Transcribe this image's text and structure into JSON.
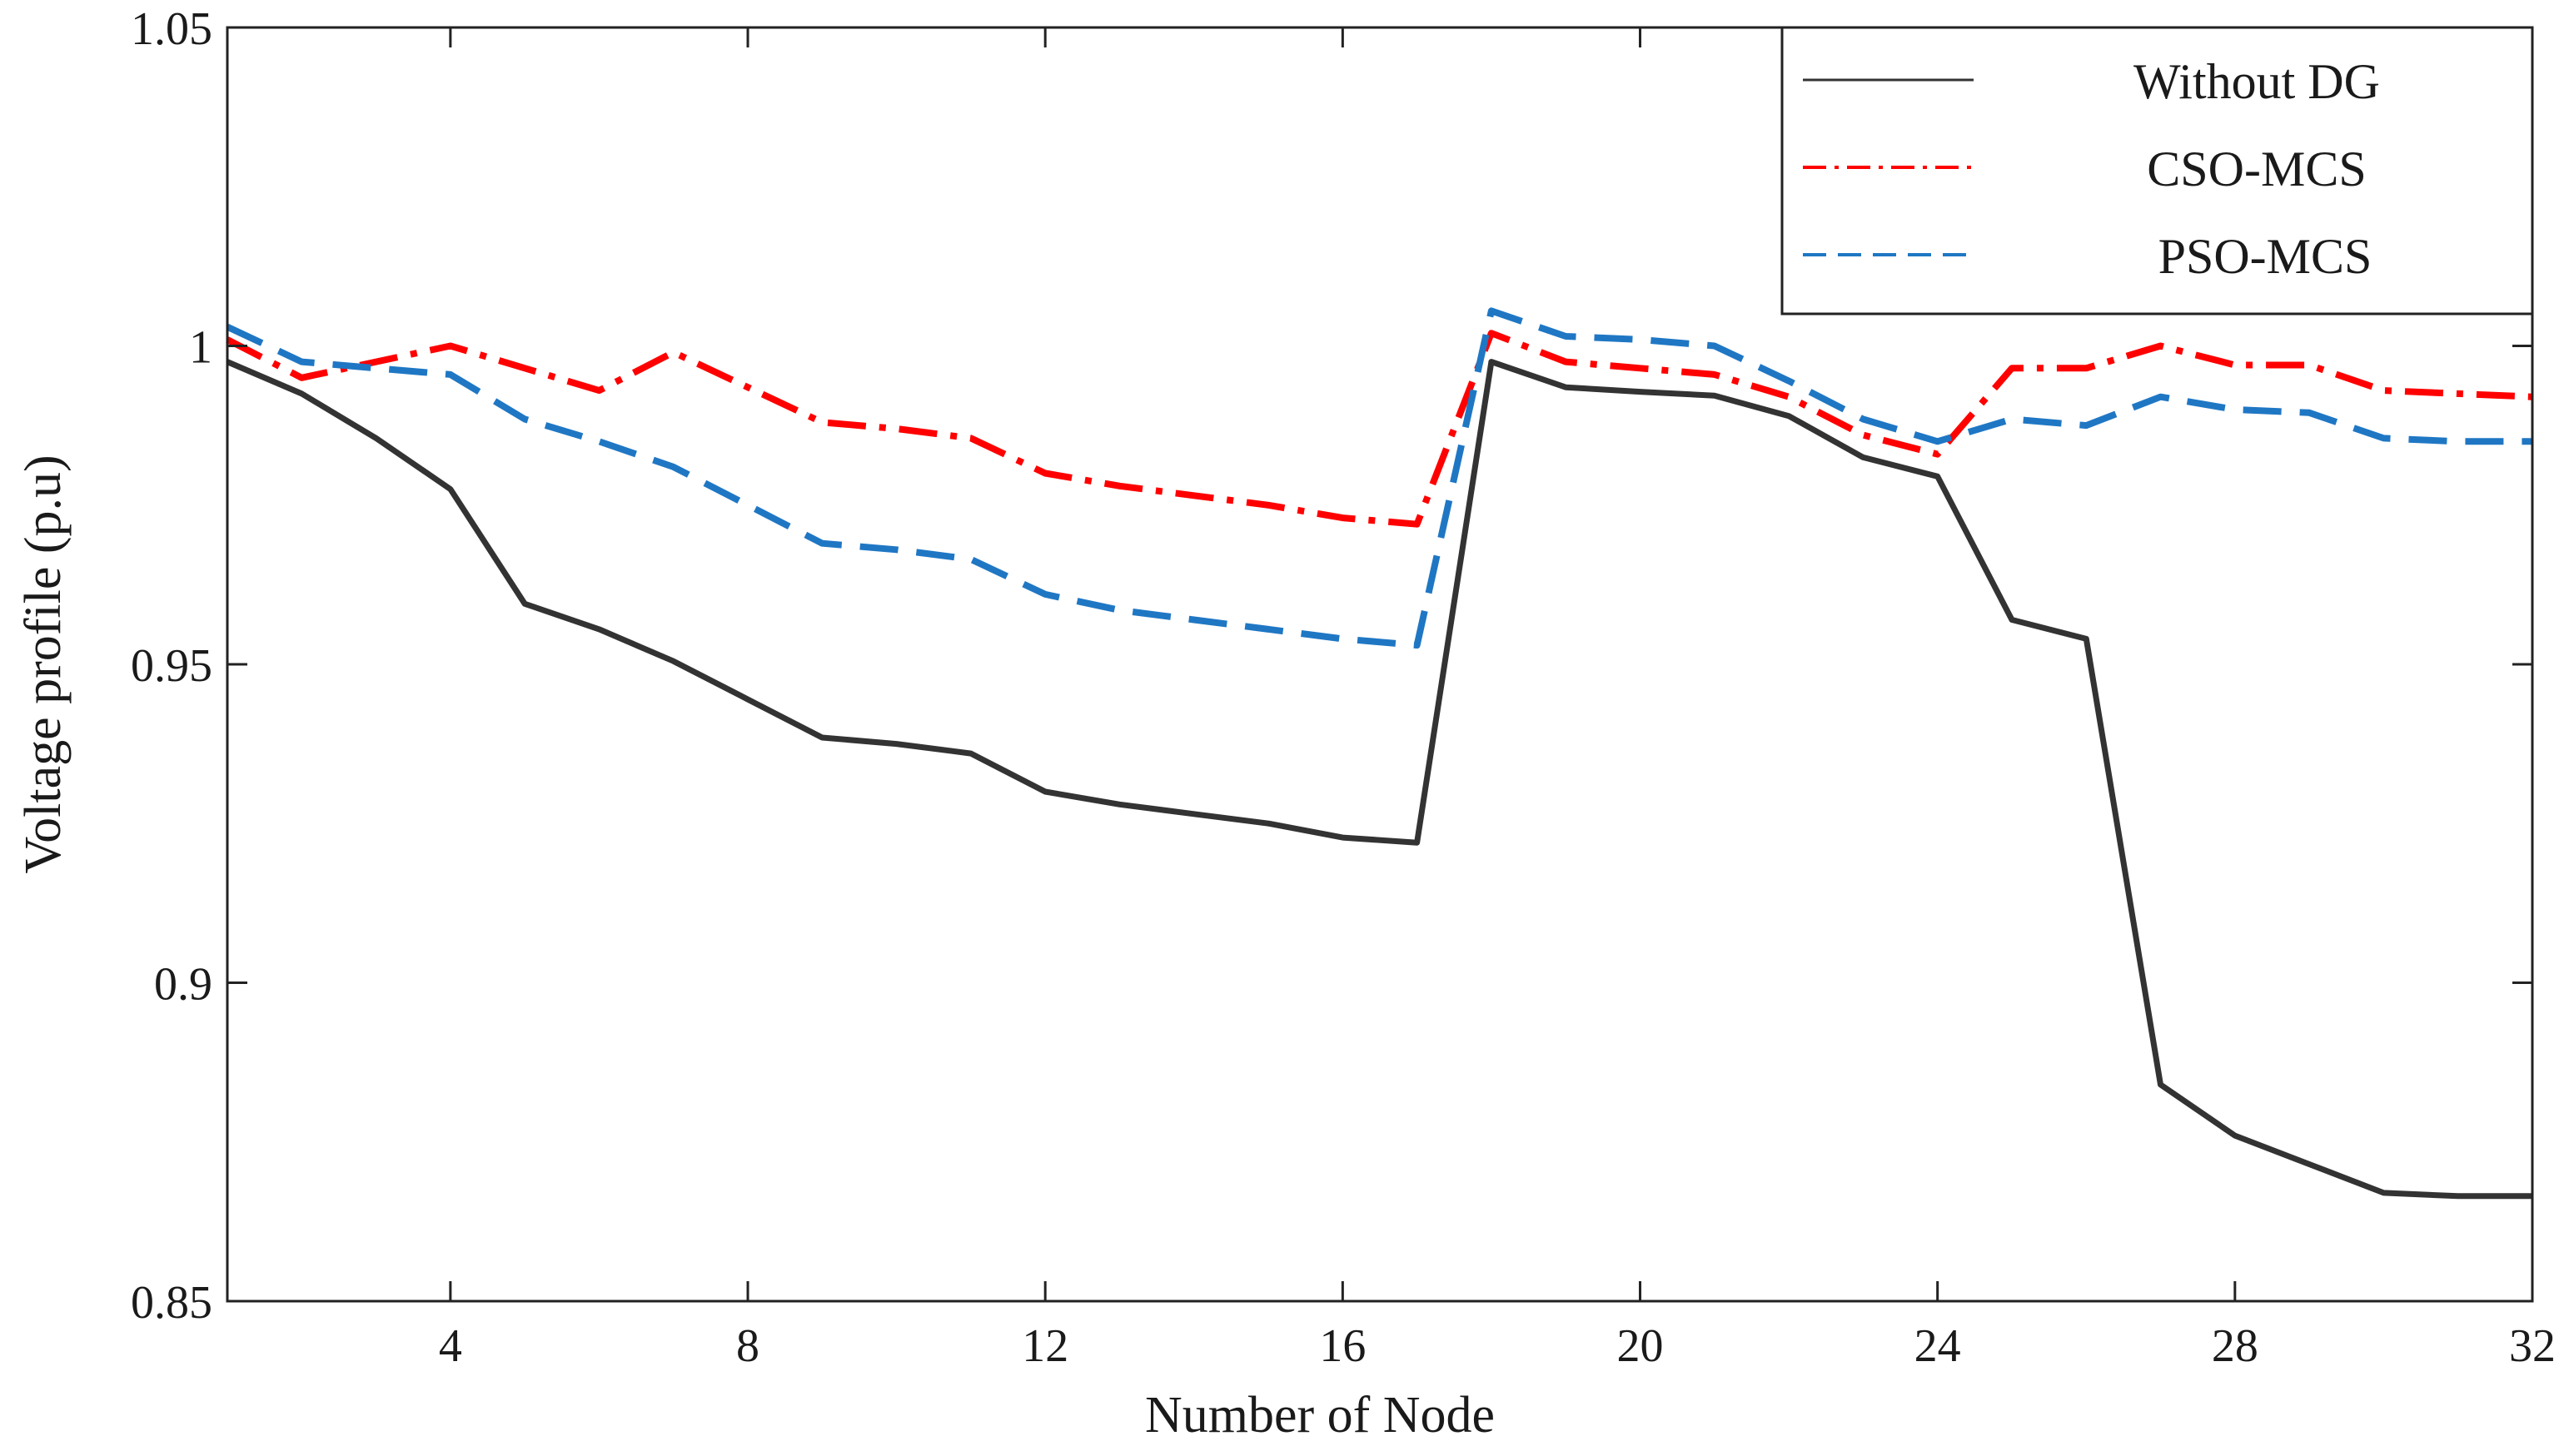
{
  "chart_data": {
    "type": "line",
    "title": "",
    "xlabel": "Number of Node",
    "ylabel": "Voltage profile (p.u)",
    "xlim": [
      1,
      32
    ],
    "ylim": [
      0.85,
      1.05
    ],
    "xticks": [
      4,
      8,
      12,
      16,
      20,
      24,
      28,
      32
    ],
    "xtick_labels": [
      "4",
      "8",
      "12",
      "16",
      "20",
      "24",
      "28",
      "32"
    ],
    "yticks": [
      0.85,
      0.9,
      0.95,
      1.0,
      1.05
    ],
    "ytick_labels": [
      "0.85",
      "0.9",
      "0.95",
      "1",
      "1.05"
    ],
    "grid": false,
    "legend_position": "top-right",
    "x": [
      1,
      2,
      3,
      4,
      5,
      6,
      7,
      8,
      9,
      10,
      11,
      12,
      13,
      14,
      15,
      16,
      17,
      18,
      19,
      20,
      21,
      22,
      23,
      24,
      25,
      26,
      27,
      28,
      29,
      30,
      31,
      32
    ],
    "series": [
      {
        "name": "Without DG",
        "color": "#333333",
        "style": "solid",
        "values": [
          0.9975,
          0.9925,
          0.9855,
          0.9775,
          0.9595,
          0.9555,
          0.9505,
          0.9445,
          0.9385,
          0.9375,
          0.936,
          0.93,
          0.928,
          0.9265,
          0.925,
          0.9228,
          0.922,
          0.9975,
          0.9935,
          0.9928,
          0.9922,
          0.989,
          0.9825,
          0.9795,
          0.957,
          0.954,
          0.884,
          0.876,
          0.8715,
          0.867,
          0.8665,
          0.8665
        ]
      },
      {
        "name": "CSO-MCS",
        "color": "#ff0000",
        "style": "dashdot",
        "values": [
          1.001,
          0.995,
          0.9975,
          1.0,
          0.9965,
          0.993,
          0.999,
          0.9935,
          0.988,
          0.987,
          0.9855,
          0.98,
          0.978,
          0.9765,
          0.975,
          0.973,
          0.972,
          1.002,
          0.9975,
          0.9965,
          0.9955,
          0.992,
          0.986,
          0.983,
          0.9965,
          0.9965,
          1.0,
          0.997,
          0.997,
          0.993,
          0.9925,
          0.992
        ]
      },
      {
        "name": "PSO-MCS",
        "color": "#1f77c4",
        "style": "dashed",
        "values": [
          1.003,
          0.9975,
          0.9965,
          0.9955,
          0.9885,
          0.985,
          0.981,
          0.975,
          0.969,
          0.968,
          0.9665,
          0.961,
          0.9585,
          0.957,
          0.9555,
          0.954,
          0.953,
          1.0055,
          1.0015,
          1.001,
          1.0,
          0.9945,
          0.9885,
          0.985,
          0.9885,
          0.9875,
          0.992,
          0.99,
          0.9895,
          0.9855,
          0.985,
          0.985
        ]
      }
    ]
  }
}
